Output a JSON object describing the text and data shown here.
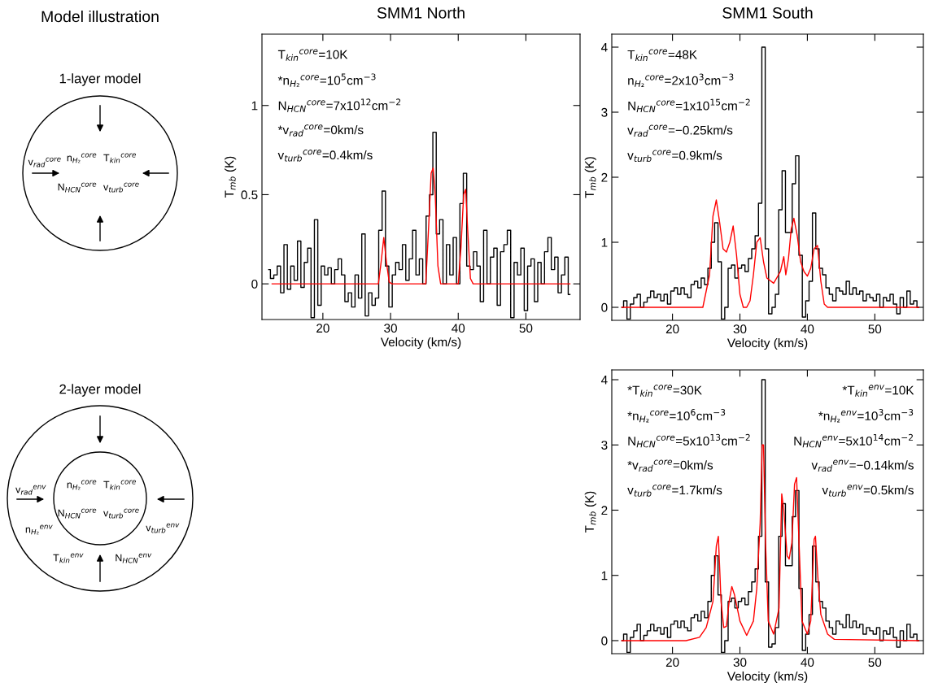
{
  "chart_data": [
    {
      "type": "other",
      "title": "Model illustration",
      "annotations": [
        "1-layer model",
        "v$_{rad}$$^{core}$",
        "n$_{H₂}$$^{core}$",
        "T$_{kin}$$^{core}$",
        "N$_{HCN}$$^{core}$",
        "v$_{turb}$$^{core}$",
        "2-layer model",
        "n$_{H₂}$$^{core}$",
        "T$_{kin}$$^{core}$",
        "N$_{HCN}$$^{core}$",
        "v$_{turb}$$^{core}$",
        "v$_{rad}$$^{env}$",
        "n$_{H₂}$$^{env}$",
        "v$_{turb}$$^{env}$",
        "T$_{kin}$$^{env}$",
        "N$_{HCN}$$^{env}$"
      ]
    },
    {
      "type": "step",
      "title": "SMM1 North",
      "xlabel": "Velocity (km/s)",
      "ylabel": "T$_{mb}$ (K)",
      "xlim": [
        11,
        58
      ],
      "ylim": [
        -0.2,
        1.4
      ],
      "xticks": [
        20,
        30,
        40,
        50
      ],
      "yticks": [
        0,
        0.5,
        1
      ],
      "annotations": [
        "T$_{kin}$$^{core}$=10K",
        "*n$_{H₂}$$^{core}$=10$^{5}$cm$^{−3}$",
        "N$_{HCN}$$^{core}$=7x10$^{12}$cm$^{−2}$",
        "*v$_{rad}$$^{core}$=0km/s",
        "v$_{turb}$$^{core}$=0.4km/s"
      ],
      "series": [
        {
          "type": "step",
          "color": "#000000",
          "x": [
            12,
            12.5,
            13,
            13.5,
            14,
            14.5,
            15,
            15.5,
            16,
            16.5,
            17,
            17.5,
            18,
            18.5,
            19,
            19.5,
            20,
            20.5,
            21,
            21.5,
            22,
            22.5,
            23,
            23.5,
            24,
            24.5,
            25,
            25.5,
            26,
            26.5,
            27,
            27.5,
            28,
            28.5,
            29,
            29.5,
            30,
            30.5,
            31,
            31.5,
            32,
            32.5,
            33,
            33.5,
            34,
            34.5,
            35,
            35.5,
            36,
            36.5,
            37,
            37.5,
            38,
            38.5,
            39,
            39.5,
            40,
            40.5,
            41,
            41.5,
            42,
            42.5,
            43,
            43.5,
            44,
            44.5,
            45,
            45.5,
            46,
            46.5,
            47,
            47.5,
            48,
            48.5,
            49,
            49.5,
            50,
            50.5,
            51,
            51.5,
            52,
            52.5,
            53,
            53.5,
            54,
            54.5,
            55,
            55.5,
            56,
            56.5
          ],
          "values": [
            0.08,
            0.03,
            0.05,
            0.1,
            -0.05,
            0.22,
            -0.03,
            0.1,
            0.02,
            0.24,
            -0.02,
            0.12,
            0.2,
            -0.19,
            0.36,
            -0.12,
            0.1,
            0.05,
            0.09,
            0.0,
            0.08,
            0.14,
            0.05,
            -0.1,
            -0.05,
            -0.13,
            0.05,
            -0.08,
            0.28,
            -0.18,
            -0.05,
            -0.12,
            -0.08,
            0.3,
            0.52,
            0.1,
            -0.13,
            0.05,
            0.12,
            0.08,
            0.22,
            0.02,
            0.14,
            0.3,
            0.05,
            0.14,
            0.0,
            0.38,
            0.5,
            0.85,
            0.28,
            0.36,
            0.0,
            0.22,
            0.05,
            0.26,
            0.0,
            0.45,
            0.62,
            0.1,
            0.08,
            0.18,
            0.1,
            -0.1,
            0.3,
            0.0,
            0.15,
            0.2,
            -0.12,
            0.18,
            0.22,
            0.3,
            -0.19,
            0.12,
            0.05,
            0.2,
            -0.15,
            0.1,
            0.14,
            -0.1,
            0.12,
            0.0,
            0.18,
            0.26,
            0.08,
            0.15,
            -0.05,
            0.05,
            0.15,
            -0.06
          ]
        },
        {
          "type": "line",
          "color": "#ff0000",
          "x": [
            12.5,
            28.2,
            28.6,
            29.0,
            29.4,
            29.8,
            30.2,
            35.2,
            35.6,
            36.0,
            36.3,
            36.6,
            37.0,
            37.4,
            40.0,
            40.4,
            40.8,
            41.1,
            41.4,
            41.8,
            42.2,
            56.5
          ],
          "values": [
            0,
            0,
            0.12,
            0.26,
            0.12,
            0.01,
            0,
            0,
            0.3,
            0.62,
            0.65,
            0.5,
            0.1,
            0,
            0,
            0.2,
            0.5,
            0.53,
            0.3,
            0.03,
            0,
            0
          ]
        }
      ]
    },
    {
      "type": "step",
      "title": "SMM1 South",
      "xlabel": "Velocity (km/s)",
      "ylabel": "T$_{mb}$ (K)",
      "xlim": [
        11,
        57.2
      ],
      "ylim": [
        -0.2,
        4.2
      ],
      "xticks": [
        20,
        30,
        40,
        50
      ],
      "yticks": [
        0,
        1,
        2,
        3,
        4
      ],
      "annotations": [
        "T$_{kin}$$^{core}$=48K",
        "n$_{H₂}$$^{core}$=2x10$^{3}$cm$^{−3}$",
        "N$_{HCN}$$^{core}$=1x10$^{15}$cm$^{−2}$",
        "v$_{rad}$$^{core}$=−0.25km/s",
        "v$_{turb}$$^{core}$=0.9km/s"
      ],
      "series": [
        {
          "type": "step",
          "color": "#000000",
          "x": [
            12.5,
            13,
            13.5,
            14,
            14.5,
            15,
            15.5,
            16,
            16.5,
            17,
            17.5,
            18,
            18.5,
            19,
            19.5,
            20,
            20.5,
            21,
            21.5,
            22,
            22.5,
            23,
            23.5,
            24,
            24.5,
            25,
            25.5,
            26,
            26.5,
            27,
            27.5,
            28,
            28.5,
            29,
            29.5,
            30,
            30.5,
            31,
            31.5,
            32,
            32.5,
            33,
            33.5,
            34,
            34.5,
            35,
            35.5,
            36,
            36.5,
            37,
            37.5,
            38,
            38.5,
            39,
            39.5,
            40,
            40.5,
            41,
            41.5,
            42,
            42.5,
            43,
            43.5,
            44,
            44.5,
            45,
            45.5,
            46,
            46.5,
            47,
            47.5,
            48,
            48.5,
            49,
            49.5,
            50,
            50.5,
            51,
            51.5,
            52,
            52.5,
            53,
            53.5,
            54,
            54.5,
            55,
            55.5,
            56,
            56.5
          ],
          "values": [
            0.0,
            0.1,
            -0.18,
            0.05,
            0.15,
            0.2,
            0.0,
            0.08,
            0.15,
            0.25,
            0.15,
            0.2,
            0.1,
            0.2,
            0.05,
            0.25,
            0.3,
            0.2,
            0.3,
            0.2,
            0.15,
            0.35,
            0.4,
            0.3,
            0.45,
            0.35,
            0.6,
            1.0,
            1.3,
            0.7,
            -0.18,
            0.0,
            0.6,
            0.65,
            0.45,
            0.6,
            0.65,
            0.55,
            0.75,
            0.9,
            1.1,
            1.6,
            4.0,
            0.9,
            -0.1,
            0.0,
            0.2,
            1.5,
            2.1,
            1.15,
            1.15,
            1.9,
            2.33,
            0.8,
            -0.15,
            0.1,
            0.4,
            1.45,
            0.9,
            0.6,
            0.5,
            0.3,
            0.2,
            0.1,
            0.3,
            0.25,
            0.2,
            0.4,
            0.2,
            0.3,
            0.2,
            0.25,
            0.1,
            0.2,
            0.15,
            0.1,
            0.2,
            0.0,
            0.15,
            0.1,
            0.2,
            0.05,
            -0.1,
            0.15,
            0.0,
            0.25,
            0.05,
            0.1,
            0.0
          ]
        },
        {
          "type": "line",
          "color": "#ff0000",
          "x": [
            12.5,
            24.5,
            25.5,
            26.0,
            26.5,
            27.0,
            27.5,
            28.0,
            28.5,
            29.0,
            29.5,
            30.0,
            30.5,
            31.0,
            31.5,
            32.0,
            32.5,
            33.0,
            33.5,
            34.0,
            35.0,
            36.0,
            36.5,
            36.8,
            37.2,
            37.6,
            38.0,
            38.5,
            39.0,
            39.5,
            40.0,
            40.5,
            41.0,
            41.5,
            42.0,
            42.5,
            43.0,
            43.5,
            56.5
          ],
          "values": [
            0,
            0,
            0.5,
            1.4,
            1.65,
            1.3,
            0.9,
            0.85,
            1.0,
            1.25,
            0.8,
            0.2,
            0.0,
            0.0,
            0.1,
            0.5,
            1.0,
            1.07,
            0.7,
            0.45,
            0.37,
            0.55,
            0.78,
            0.5,
            0.75,
            1.2,
            1.37,
            1.1,
            0.7,
            0.55,
            0.48,
            0.6,
            0.9,
            0.95,
            0.4,
            0.05,
            0,
            0,
            0
          ]
        }
      ]
    },
    {
      "type": "step",
      "xlabel": "Velocity (km/s)",
      "ylabel": "T$_{mb}$ (K)",
      "xlim": [
        11,
        57.2
      ],
      "ylim": [
        -0.2,
        4.15
      ],
      "xticks": [
        20,
        30,
        40,
        50
      ],
      "yticks": [
        0,
        1,
        2,
        3,
        4
      ],
      "annotations": [
        "*T$_{kin}$$^{core}$=30K",
        "*n$_{H₂}$$^{core}$=10$^{6}$cm$^{−3}$",
        "N$_{HCN}$$^{core}$=5x10$^{13}$cm$^{−2}$",
        "*v$_{rad}$$^{core}$=0km/s",
        "v$_{turb}$$^{core}$=1.7km/s",
        "*T$_{kin}$$^{env}$=10K",
        "*n$_{H₂}$$^{env}$=10$^{3}$cm$^{−3}$",
        "N$_{HCN}$$^{env}$=5x10$^{14}$cm$^{−2}$",
        "v$_{rad}$$^{env}$=−0.14km/s",
        "v$_{turb}$$^{env}$=0.5km/s"
      ],
      "series": [
        {
          "type": "step",
          "color": "#000000",
          "x": [
            12.5,
            13,
            13.5,
            14,
            14.5,
            15,
            15.5,
            16,
            16.5,
            17,
            17.5,
            18,
            18.5,
            19,
            19.5,
            20,
            20.5,
            21,
            21.5,
            22,
            22.5,
            23,
            23.5,
            24,
            24.5,
            25,
            25.5,
            26,
            26.5,
            27,
            27.5,
            28,
            28.5,
            29,
            29.5,
            30,
            30.5,
            31,
            31.5,
            32,
            32.5,
            33,
            33.5,
            34,
            34.5,
            35,
            35.5,
            36,
            36.5,
            37,
            37.5,
            38,
            38.5,
            39,
            39.5,
            40,
            40.5,
            41,
            41.5,
            42,
            42.5,
            43,
            43.5,
            44,
            44.5,
            45,
            45.5,
            46,
            46.5,
            47,
            47.5,
            48,
            48.5,
            49,
            49.5,
            50,
            50.5,
            51,
            51.5,
            52,
            52.5,
            53,
            53.5,
            54,
            54.5,
            55,
            55.5,
            56,
            56.5
          ],
          "values": [
            0.0,
            0.1,
            -0.18,
            0.05,
            0.15,
            0.25,
            0.0,
            0.08,
            0.15,
            0.25,
            0.15,
            0.2,
            0.1,
            0.2,
            0.05,
            0.25,
            0.3,
            0.2,
            0.3,
            0.2,
            0.15,
            0.35,
            0.4,
            0.3,
            0.45,
            0.35,
            0.6,
            1.0,
            1.3,
            0.7,
            -0.18,
            0.0,
            0.6,
            0.65,
            0.5,
            0.6,
            0.65,
            0.55,
            0.75,
            0.9,
            1.1,
            1.6,
            4.0,
            0.9,
            -0.1,
            -0.05,
            0.2,
            1.6,
            2.1,
            1.15,
            1.15,
            1.9,
            2.3,
            0.8,
            -0.15,
            0.1,
            0.4,
            1.45,
            0.9,
            0.6,
            0.5,
            0.3,
            0.2,
            0.1,
            0.3,
            0.25,
            0.2,
            0.4,
            0.2,
            0.3,
            0.2,
            0.25,
            0.1,
            0.2,
            0.15,
            0.1,
            0.2,
            0.0,
            0.15,
            0.1,
            0.2,
            0.05,
            -0.1,
            0.15,
            0.0,
            0.25,
            0.05,
            0.1,
            0.0
          ]
        },
        {
          "type": "line",
          "color": "#ff0000",
          "x": [
            12.5,
            22,
            24,
            25,
            26,
            26.5,
            26.8,
            27.2,
            27.6,
            28,
            28.4,
            28.8,
            29.2,
            30,
            31,
            32,
            32.5,
            33,
            33.3,
            33.5,
            33.8,
            34.2,
            35,
            35.8,
            36.2,
            36.5,
            37,
            37.3,
            37.7,
            38.1,
            38.4,
            38.8,
            39.2,
            40,
            40.5,
            41,
            41.2,
            41.6,
            42,
            43,
            44,
            56.5
          ],
          "values": [
            0,
            0.0,
            0.05,
            0.2,
            0.6,
            1.45,
            1.6,
            0.6,
            0.2,
            0.22,
            0.6,
            0.83,
            0.7,
            0.3,
            0.08,
            0.3,
            0.8,
            1.8,
            3.0,
            3.0,
            1.5,
            0.3,
            0.1,
            0.5,
            2.25,
            2.0,
            1.3,
            1.25,
            1.5,
            2.4,
            2.5,
            1.4,
            0.3,
            0.1,
            0.3,
            1.55,
            1.6,
            0.9,
            0.4,
            0.1,
            0.02,
            0
          ]
        }
      ]
    }
  ]
}
